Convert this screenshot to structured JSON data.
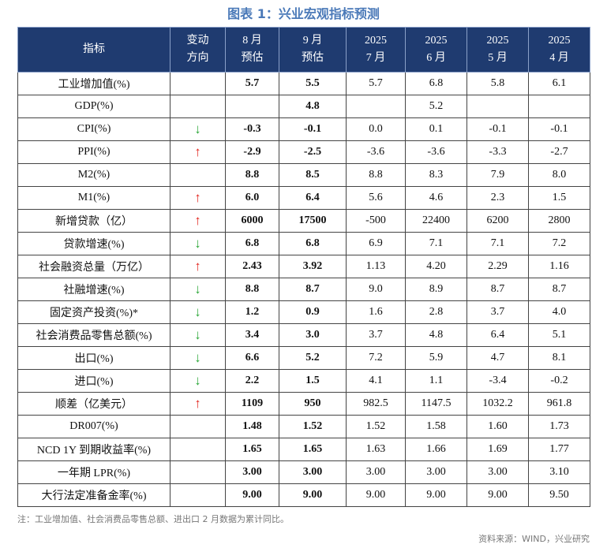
{
  "title": "图表 1：兴业宏观指标预测",
  "table": {
    "header": [
      [
        "指标"
      ],
      [
        "变动",
        "方向"
      ],
      [
        "8 月",
        "预估"
      ],
      [
        "9 月",
        "预估"
      ],
      [
        "2025",
        "7 月"
      ],
      [
        "2025",
        "6 月"
      ],
      [
        "2025",
        "5 月"
      ],
      [
        "2025",
        "4 月"
      ]
    ],
    "rows": [
      [
        "工业增加值(%)",
        null,
        "5.7",
        "5.5",
        "5.7",
        "6.8",
        "5.8",
        "6.1"
      ],
      [
        "GDP(%)",
        null,
        null,
        "4.8",
        null,
        "5.2",
        null,
        null
      ],
      [
        "CPI(%)",
        {
          "symbol": "↓",
          "color": "#2ea83a"
        },
        "-0.3",
        "-0.1",
        "0.0",
        "0.1",
        "-0.1",
        "-0.1"
      ],
      [
        "PPI(%)",
        {
          "symbol": "↑",
          "color": "#e3261f"
        },
        "-2.9",
        "-2.5",
        "-3.6",
        "-3.6",
        "-3.3",
        "-2.7"
      ],
      [
        "M2(%)",
        null,
        "8.8",
        "8.5",
        "8.8",
        "8.3",
        "7.9",
        "8.0"
      ],
      [
        "M1(%)",
        {
          "symbol": "↑",
          "color": "#e3261f"
        },
        "6.0",
        "6.4",
        "5.6",
        "4.6",
        "2.3",
        "1.5"
      ],
      [
        "新增贷款（亿）",
        {
          "symbol": "↑",
          "color": "#e3261f"
        },
        "6000",
        "17500",
        "-500",
        "22400",
        "6200",
        "2800"
      ],
      [
        "贷款增速(%)",
        {
          "symbol": "↓",
          "color": "#2ea83a"
        },
        "6.8",
        "6.8",
        "6.9",
        "7.1",
        "7.1",
        "7.2"
      ],
      [
        "社会融资总量（万亿）",
        {
          "symbol": "↑",
          "color": "#e3261f"
        },
        "2.43",
        "3.92",
        "1.13",
        "4.20",
        "2.29",
        "1.16"
      ],
      [
        "社融增速(%)",
        {
          "symbol": "↓",
          "color": "#2ea83a"
        },
        "8.8",
        "8.7",
        "9.0",
        "8.9",
        "8.7",
        "8.7"
      ],
      [
        "固定资产投资(%)*",
        {
          "symbol": "↓",
          "color": "#2ea83a"
        },
        "1.2",
        "0.9",
        "1.6",
        "2.8",
        "3.7",
        "4.0"
      ],
      [
        "社会消费品零售总额(%)",
        {
          "symbol": "↓",
          "color": "#2ea83a"
        },
        "3.4",
        "3.0",
        "3.7",
        "4.8",
        "6.4",
        "5.1"
      ],
      [
        "出口(%)",
        {
          "symbol": "↓",
          "color": "#2ea83a"
        },
        "6.6",
        "5.2",
        "7.2",
        "5.9",
        "4.7",
        "8.1"
      ],
      [
        "进口(%)",
        {
          "symbol": "↓",
          "color": "#2ea83a"
        },
        "2.2",
        "1.5",
        "4.1",
        "1.1",
        "-3.4",
        "-0.2"
      ],
      [
        "顺差（亿美元）",
        {
          "symbol": "↑",
          "color": "#e3261f"
        },
        "1109",
        "950",
        "982.5",
        "1147.5",
        "1032.2",
        "961.8"
      ],
      [
        "DR007(%)",
        null,
        "1.48",
        "1.52",
        "1.52",
        "1.58",
        "1.60",
        "1.73"
      ],
      [
        "NCD 1Y 到期收益率(%)",
        null,
        "1.65",
        "1.65",
        "1.63",
        "1.66",
        "1.69",
        "1.77"
      ],
      [
        "一年期 LPR(%)",
        null,
        "3.00",
        "3.00",
        "3.00",
        "3.00",
        "3.00",
        "3.10"
      ],
      [
        "大行法定准备金率(%)",
        null,
        "9.00",
        "9.00",
        "9.00",
        "9.00",
        "9.00",
        "9.50"
      ]
    ]
  },
  "note": "注：工业增加值、社会消费品零售总额、进出口 2 月数据为累计同比。",
  "source": "资料来源：WIND，兴业研究"
}
